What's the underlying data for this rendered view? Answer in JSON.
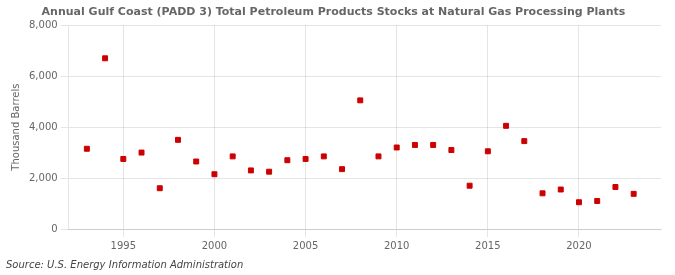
{
  "chart_data": {
    "type": "scatter",
    "title": "Annual Gulf Coast (PADD 3) Total Petroleum Products Stocks at Natural Gas Processing Plants",
    "ylabel": "Thousand Barrels",
    "source": "Source: U.S. Energy Information Administration",
    "x": [
      1993,
      1994,
      1995,
      1996,
      1997,
      1998,
      1999,
      2000,
      2001,
      2002,
      2003,
      2004,
      2005,
      2006,
      2007,
      2008,
      2009,
      2010,
      2011,
      2012,
      2013,
      2014,
      2015,
      2016,
      2017,
      2018,
      2019,
      2020,
      2021,
      2022,
      2023
    ],
    "values": [
      3150,
      6700,
      2750,
      3000,
      1600,
      3500,
      2650,
      2150,
      2850,
      2300,
      2250,
      2700,
      2750,
      2850,
      2350,
      5050,
      2850,
      3200,
      3300,
      3300,
      3100,
      1700,
      3050,
      4050,
      3450,
      1400,
      1550,
      1050,
      1100,
      1650,
      1380
    ],
    "color": "#cc0000",
    "marker": "square",
    "xlim": [
      1992.0,
      2024.5
    ],
    "xticks": [
      1995,
      2000,
      2005,
      2010,
      2015,
      2020
    ],
    "ylim": [
      0,
      8000
    ],
    "yticks": [
      0,
      {
        "value": 2000,
        "label": "2,000"
      },
      {
        "value": 4000,
        "label": "4,000"
      },
      {
        "value": 6000,
        "label": "6,000"
      },
      {
        "value": 8000,
        "label": "8,000"
      }
    ],
    "grid": true
  }
}
